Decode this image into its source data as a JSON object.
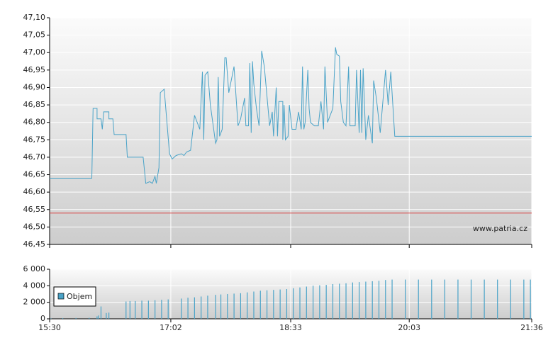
{
  "chart_data": [
    {
      "type": "line",
      "annotation": "www.patria.cz",
      "xlim": [
        "15:30",
        "21:36"
      ],
      "ylim": [
        46.45,
        47.1
      ],
      "yticks": [
        {
          "value": 46.45,
          "label": "46,45"
        },
        {
          "value": 46.5,
          "label": "46,50"
        },
        {
          "value": 46.55,
          "label": "46,55"
        },
        {
          "value": 46.6,
          "label": "46,60"
        },
        {
          "value": 46.65,
          "label": "46,65"
        },
        {
          "value": 46.7,
          "label": "46,70"
        },
        {
          "value": 46.75,
          "label": "46,75"
        },
        {
          "value": 46.8,
          "label": "46,80"
        },
        {
          "value": 46.85,
          "label": "46,85"
        },
        {
          "value": 46.9,
          "label": "46,90"
        },
        {
          "value": 46.95,
          "label": "46,95"
        },
        {
          "value": 47.0,
          "label": "47,00"
        },
        {
          "value": 47.05,
          "label": "47,05"
        },
        {
          "value": 47.1,
          "label": "47,10"
        }
      ],
      "grid": true,
      "reference_line": 46.54,
      "reference_color": "#d94040",
      "color": "#4aa3c8",
      "x": [
        "15:30",
        "16:02",
        "16:03",
        "16:06",
        "16:06",
        "16:09",
        "16:10",
        "16:11",
        "16:15",
        "16:15",
        "16:18",
        "16:19",
        "16:28",
        "16:29",
        "16:41",
        "16:43",
        "16:46",
        "16:48",
        "16:50",
        "16:51",
        "16:53",
        "16:54",
        "16:57",
        "17:01",
        "17:03",
        "17:06",
        "17:10",
        "17:12",
        "17:14",
        "17:17",
        "17:20",
        "17:24",
        "17:26",
        "17:27",
        "17:28",
        "17:30",
        "17:32",
        "17:36",
        "17:37",
        "17:38",
        "17:39",
        "17:41",
        "17:43",
        "17:44",
        "17:46",
        "17:50",
        "17:53",
        "17:55",
        "17:58",
        "17:59",
        "18:01",
        "18:02",
        "18:03",
        "18:04",
        "18:05",
        "18:07",
        "18:09",
        "18:11",
        "18:13",
        "18:17",
        "18:19",
        "18:20",
        "18:22",
        "18:23",
        "18:24",
        "18:27",
        "18:27",
        "18:28",
        "18:29",
        "18:31",
        "18:32",
        "18:34",
        "18:37",
        "18:39",
        "18:41",
        "18:42",
        "18:43",
        "18:44",
        "18:46",
        "18:47",
        "18:48",
        "18:51",
        "18:54",
        "18:56",
        "18:58",
        "18:59",
        "19:01",
        "19:03",
        "19:05",
        "19:07",
        "19:08",
        "19:10",
        "19:11",
        "19:13",
        "19:15",
        "19:17",
        "19:18",
        "19:22",
        "19:23",
        "19:25",
        "19:26",
        "19:27",
        "19:28",
        "19:30",
        "19:32",
        "19:35",
        "19:36",
        "19:38",
        "19:41",
        "19:45",
        "19:47",
        "19:49",
        "19:52",
        "21:36"
      ],
      "values": [
        46.64,
        46.64,
        46.84,
        46.84,
        46.81,
        46.81,
        46.78,
        46.83,
        46.83,
        46.81,
        46.81,
        46.765,
        46.765,
        46.7,
        46.7,
        46.625,
        46.63,
        46.625,
        46.645,
        46.625,
        46.67,
        46.885,
        46.895,
        46.71,
        46.695,
        46.705,
        46.71,
        46.705,
        46.715,
        46.72,
        46.82,
        46.78,
        46.945,
        46.75,
        46.935,
        46.945,
        46.85,
        46.74,
        46.75,
        46.93,
        46.76,
        46.78,
        46.985,
        46.985,
        46.885,
        46.96,
        46.79,
        46.81,
        46.87,
        46.79,
        46.79,
        46.97,
        46.77,
        46.975,
        46.91,
        46.84,
        46.79,
        47.005,
        46.96,
        46.79,
        46.83,
        46.76,
        46.9,
        46.76,
        46.86,
        46.86,
        46.75,
        46.85,
        46.75,
        46.76,
        46.85,
        46.78,
        46.78,
        46.83,
        46.78,
        46.96,
        46.78,
        46.8,
        46.95,
        46.84,
        46.8,
        46.79,
        46.79,
        46.86,
        46.78,
        46.96,
        46.8,
        46.82,
        46.84,
        47.015,
        46.995,
        46.99,
        46.86,
        46.8,
        46.79,
        46.96,
        46.79,
        46.79,
        46.95,
        46.77,
        46.95,
        46.77,
        46.955,
        46.75,
        46.82,
        46.74,
        46.92,
        46.87,
        46.77,
        46.95,
        46.85,
        46.945,
        46.76,
        46.76
      ]
    },
    {
      "type": "bar",
      "xlim": [
        "15:30",
        "21:36"
      ],
      "xticks": [
        "15:30",
        "17:02",
        "18:33",
        "20:03",
        "21:36"
      ],
      "ylim": [
        0,
        6000
      ],
      "yticks": [
        0,
        {
          "value": 2000,
          "label": "2 000"
        },
        {
          "value": 4000,
          "label": "4 000"
        },
        {
          "value": 6000,
          "label": "6 000"
        }
      ],
      "grid": true,
      "legend": "upper left",
      "x": [
        "15:31",
        "15:40",
        "15:50",
        "16:00",
        "16:06",
        "16:07",
        "16:09",
        "16:13",
        "16:15",
        "16:28",
        "16:31",
        "16:35",
        "16:40",
        "16:45",
        "16:50",
        "16:55",
        "17:00",
        "17:10",
        "17:15",
        "17:20",
        "17:25",
        "17:30",
        "17:36",
        "17:40",
        "17:45",
        "17:50",
        "17:55",
        "18:00",
        "18:05",
        "18:10",
        "18:15",
        "18:20",
        "18:25",
        "18:30",
        "18:35",
        "18:40",
        "18:45",
        "18:50",
        "18:55",
        "19:00",
        "19:05",
        "19:10",
        "19:15",
        "19:20",
        "19:25",
        "19:30",
        "19:35",
        "19:40",
        "19:45",
        "19:50",
        "20:00",
        "20:10",
        "20:20",
        "20:30",
        "20:40",
        "20:50",
        "21:00",
        "21:10",
        "21:20",
        "21:30",
        "21:35"
      ],
      "series": [
        {
          "name": "Objem",
          "color": "#4aa3c8",
          "values": [
            50,
            80,
            100,
            120,
            300,
            400,
            1500,
            700,
            750,
            2100,
            2150,
            2150,
            2200,
            2200,
            2250,
            2300,
            2350,
            2450,
            2550,
            2600,
            2700,
            2800,
            2900,
            2950,
            3000,
            3050,
            3100,
            3200,
            3300,
            3400,
            3450,
            3500,
            3550,
            3600,
            3700,
            3800,
            3900,
            4000,
            4050,
            4100,
            4200,
            4250,
            4300,
            4400,
            4450,
            4500,
            4550,
            4600,
            4700,
            4750,
            4750,
            4750,
            4750,
            4750,
            4750,
            4750,
            4750,
            4750,
            4750,
            4750,
            4750
          ]
        }
      ]
    }
  ]
}
